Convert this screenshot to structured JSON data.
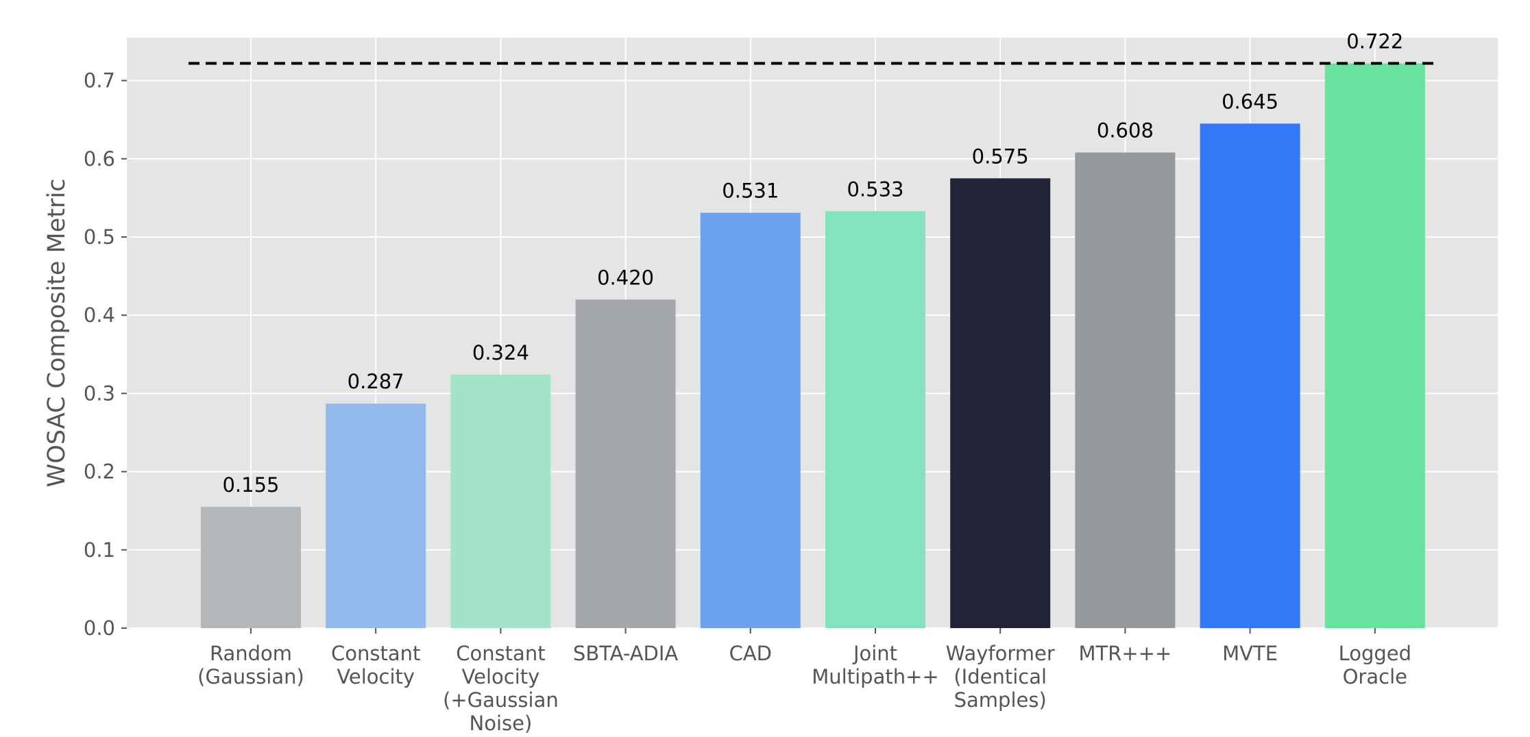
{
  "chart_data": {
    "type": "bar",
    "title": "",
    "xlabel": "",
    "ylabel": "WOSAC Composite Metric",
    "ylim": [
      0,
      0.76
    ],
    "yticks": [
      0.0,
      0.1,
      0.2,
      0.3,
      0.4,
      0.5,
      0.6,
      0.7
    ],
    "ytick_labels": [
      "0.0",
      "0.1",
      "0.2",
      "0.3",
      "0.4",
      "0.5",
      "0.6",
      "0.7"
    ],
    "grid": true,
    "categories": [
      [
        "Random",
        "(Gaussian)"
      ],
      [
        "Constant",
        "Velocity"
      ],
      [
        "Constant",
        "Velocity",
        "(+Gaussian",
        "Noise)"
      ],
      [
        "SBTA-ADIA"
      ],
      [
        "CAD"
      ],
      [
        "Joint",
        "Multipath++"
      ],
      [
        "Wayformer",
        "(Identical",
        "Samples)"
      ],
      [
        "MTR+++"
      ],
      [
        "MVTE"
      ],
      [
        "Logged",
        "Oracle"
      ]
    ],
    "values": [
      0.155,
      0.287,
      0.324,
      0.42,
      0.531,
      0.533,
      0.575,
      0.608,
      0.645,
      0.722
    ],
    "value_labels": [
      "0.155",
      "0.287",
      "0.324",
      "0.420",
      "0.531",
      "0.533",
      "0.575",
      "0.608",
      "0.645",
      "0.722"
    ],
    "colors": [
      "#b4b7ba",
      "#93b9ec",
      "#a3e4c9",
      "#a4a7ac",
      "#6ca2ee",
      "#84e3bd",
      "#232338",
      "#94999d",
      "#3478f6",
      "#68e29f"
    ],
    "reference_line": {
      "value": 0.722,
      "style": "dashed",
      "color": "#000000"
    },
    "colors_theme": {
      "plot_background": "#e5e5e5",
      "grid": "#ffffff"
    }
  }
}
